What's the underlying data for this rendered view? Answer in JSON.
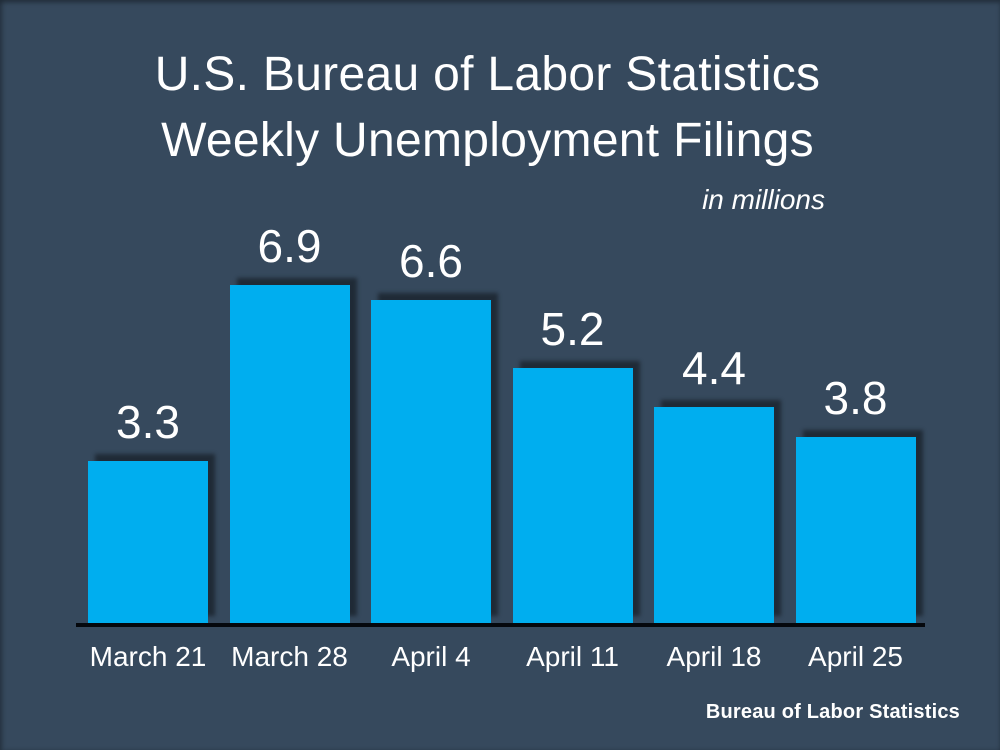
{
  "title": {
    "line1": "U.S. Bureau of Labor Statistics",
    "line2": "Weekly Unemployment Filings",
    "units": "in millions"
  },
  "footer": {
    "credit": "Bureau of Labor Statistics"
  },
  "colors": {
    "background": "#36495D",
    "bar": "#00AEEF",
    "axis": "#05080D",
    "text": "#FFFFFF",
    "bar_shadow": "rgba(0,0,0,0.42)"
  },
  "chart_data": {
    "type": "bar",
    "categories": [
      "March 21",
      "March 28",
      "April 4",
      "April 11",
      "April 18",
      "April 25"
    ],
    "values": [
      3.3,
      6.9,
      6.6,
      5.2,
      4.4,
      3.8
    ],
    "data_labels": [
      "3.3",
      "6.9",
      "6.6",
      "5.2",
      "4.4",
      "3.8"
    ],
    "title": "U.S. Bureau of Labor Statistics Weekly Unemployment Filings",
    "subtitle": "in millions",
    "xlabel": "",
    "ylabel": "",
    "ylim": [
      0,
      7
    ],
    "grid": false,
    "legend": false,
    "source": "Bureau of Labor Statistics"
  }
}
